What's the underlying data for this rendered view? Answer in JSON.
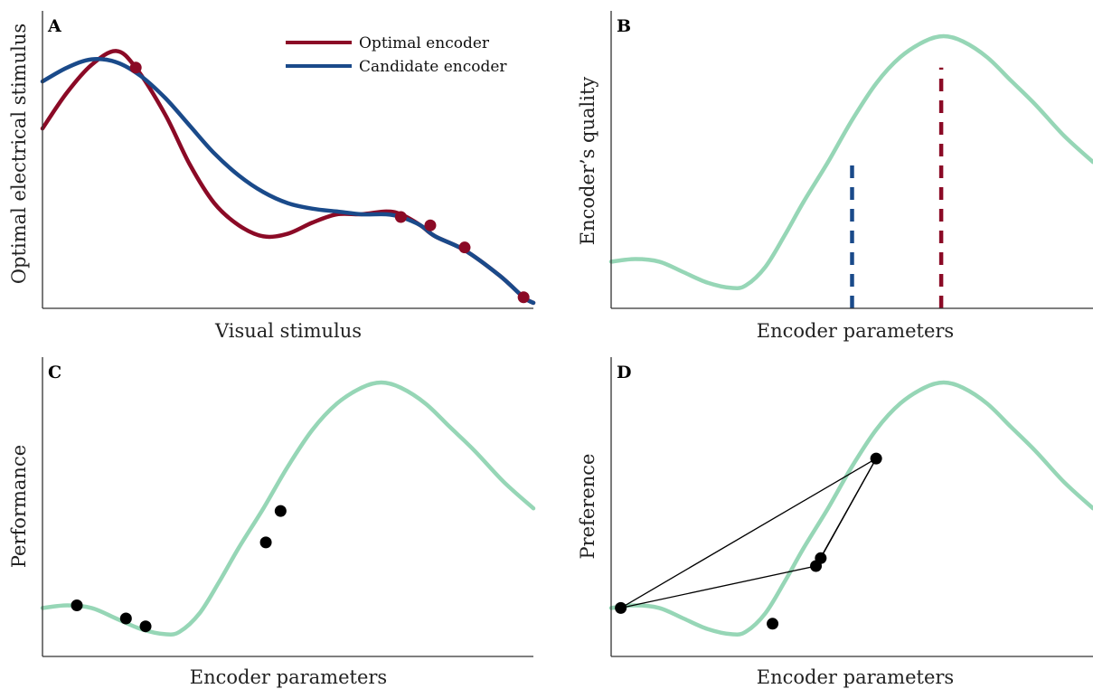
{
  "colors": {
    "optimal": "#8b0a26",
    "candidate": "#1a4a8a",
    "quality": "#96d6b6",
    "point": "#000000",
    "axis": "#333333"
  },
  "chart_data": [
    {
      "panel": "A",
      "type": "line",
      "xlabel": "Visual stimulus",
      "ylabel": "Optimal electrical stimulus",
      "xlim": [
        0,
        1
      ],
      "ylim": [
        0,
        1
      ],
      "legend": {
        "placement": "top-right",
        "entries": [
          "Optimal encoder",
          "Candidate encoder"
        ]
      },
      "series": [
        {
          "name": "Optimal encoder",
          "color": "optimal",
          "x": [
            0,
            0.05,
            0.1,
            0.15,
            0.19,
            0.25,
            0.3,
            0.35,
            0.4,
            0.45,
            0.5,
            0.55,
            0.6,
            0.65,
            0.7,
            0.73,
            0.77,
            0.8,
            0.86,
            0.93,
            0.98,
            1.0
          ],
          "y": [
            0.65,
            0.78,
            0.88,
            0.93,
            0.87,
            0.7,
            0.52,
            0.38,
            0.3,
            0.26,
            0.27,
            0.31,
            0.34,
            0.34,
            0.35,
            0.34,
            0.3,
            0.26,
            0.21,
            0.12,
            0.04,
            0.02
          ]
        },
        {
          "name": "Candidate encoder",
          "color": "candidate",
          "x": [
            0,
            0.05,
            0.1,
            0.15,
            0.2,
            0.25,
            0.3,
            0.35,
            0.4,
            0.45,
            0.5,
            0.55,
            0.6,
            0.65,
            0.7,
            0.73,
            0.77,
            0.8,
            0.86,
            0.93,
            0.98,
            1.0
          ],
          "y": [
            0.82,
            0.87,
            0.9,
            0.89,
            0.84,
            0.76,
            0.66,
            0.56,
            0.48,
            0.42,
            0.38,
            0.36,
            0.35,
            0.34,
            0.34,
            0.33,
            0.3,
            0.26,
            0.21,
            0.12,
            0.04,
            0.02
          ]
        }
      ],
      "points": {
        "color": "optimal",
        "x": [
          0.19,
          0.73,
          0.79,
          0.86,
          0.98
        ],
        "y": [
          0.87,
          0.33,
          0.3,
          0.22,
          0.04
        ]
      }
    },
    {
      "panel": "B",
      "type": "line",
      "xlabel": "Encoder parameters",
      "ylabel": "Encoder’s quality",
      "xlim": [
        0,
        1
      ],
      "ylim": [
        0,
        1
      ],
      "series": [
        {
          "color": "quality",
          "x": [
            0,
            0.05,
            0.1,
            0.15,
            0.2,
            0.25,
            0.28,
            0.32,
            0.36,
            0.4,
            0.45,
            0.5,
            0.55,
            0.6,
            0.65,
            0.69,
            0.73,
            0.78,
            0.83,
            0.88,
            0.94,
            1.0
          ],
          "y": [
            0.14,
            0.15,
            0.14,
            0.1,
            0.06,
            0.04,
            0.05,
            0.12,
            0.24,
            0.37,
            0.52,
            0.68,
            0.82,
            0.92,
            0.98,
            1.0,
            0.98,
            0.92,
            0.83,
            0.74,
            0.62,
            0.52
          ]
        }
      ],
      "markers": [
        {
          "color": "candidate",
          "x": 0.5,
          "y": 0.53
        },
        {
          "color": "optimal",
          "x": 0.685,
          "y": 0.88
        }
      ]
    },
    {
      "panel": "C",
      "type": "scatter",
      "xlabel": "Encoder parameters",
      "ylabel": "Performance",
      "xlim": [
        0,
        1
      ],
      "ylim": [
        0,
        1
      ],
      "series": [
        {
          "color": "quality",
          "x": [
            0,
            0.05,
            0.1,
            0.15,
            0.2,
            0.25,
            0.28,
            0.32,
            0.36,
            0.4,
            0.45,
            0.5,
            0.55,
            0.6,
            0.65,
            0.69,
            0.73,
            0.78,
            0.83,
            0.88,
            0.94,
            1.0
          ],
          "y": [
            0.14,
            0.15,
            0.14,
            0.1,
            0.06,
            0.04,
            0.05,
            0.12,
            0.24,
            0.37,
            0.52,
            0.68,
            0.82,
            0.92,
            0.98,
            1.0,
            0.98,
            0.92,
            0.83,
            0.74,
            0.62,
            0.52
          ]
        }
      ],
      "points": {
        "color": "point",
        "x": [
          0.07,
          0.17,
          0.21,
          0.455,
          0.485
        ],
        "y": [
          0.15,
          0.1,
          0.07,
          0.39,
          0.51
        ]
      }
    },
    {
      "panel": "D",
      "type": "scatter",
      "xlabel": "Encoder parameters",
      "ylabel": "Preference",
      "xlim": [
        0,
        1
      ],
      "ylim": [
        0,
        1
      ],
      "series": [
        {
          "color": "quality",
          "x": [
            0,
            0.05,
            0.1,
            0.15,
            0.2,
            0.25,
            0.28,
            0.32,
            0.36,
            0.4,
            0.45,
            0.5,
            0.55,
            0.6,
            0.65,
            0.69,
            0.73,
            0.78,
            0.83,
            0.88,
            0.94,
            1.0
          ],
          "y": [
            0.14,
            0.15,
            0.14,
            0.1,
            0.06,
            0.04,
            0.05,
            0.12,
            0.24,
            0.37,
            0.52,
            0.68,
            0.82,
            0.92,
            0.98,
            1.0,
            0.98,
            0.92,
            0.83,
            0.74,
            0.62,
            0.52
          ]
        }
      ],
      "points": {
        "color": "point",
        "x": [
          0.02,
          0.335,
          0.425,
          0.435,
          0.55
        ],
        "y": [
          0.14,
          0.08,
          0.3,
          0.33,
          0.71
        ]
      },
      "links": [
        [
          0,
          4
        ],
        [
          0,
          2
        ],
        [
          2,
          4
        ],
        [
          3,
          4
        ]
      ]
    }
  ]
}
